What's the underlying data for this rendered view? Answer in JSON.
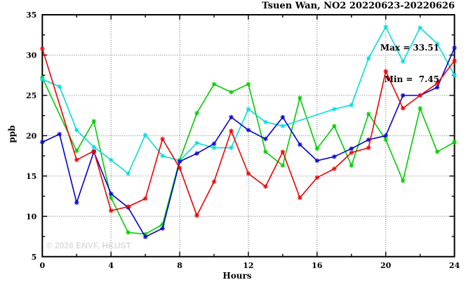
{
  "chart_data": {
    "type": "line",
    "title": "Tsuen Wan, NO2 20220623-20220626",
    "xlabel": "Hours",
    "ylabel": "ppb",
    "xlim": [
      0,
      24
    ],
    "ylim": [
      5,
      35
    ],
    "x_major_ticks": [
      0,
      4,
      8,
      12,
      16,
      20,
      24
    ],
    "x_minor_step": 2,
    "y_major_ticks": [
      5,
      10,
      15,
      20,
      25,
      30,
      35
    ],
    "y_minor_step": 2.5,
    "grid": "dotted lines at major ticks, ticks mirrored on all four borders",
    "legend_position": "none",
    "annotations": {
      "max_label": "Max = 33.51",
      "min_label": "Min =  7.45",
      "max_value": 33.51,
      "min_value": 7.45
    },
    "watermark": "© 2026 ENVF, HKUST",
    "x": [
      0,
      1,
      2,
      3,
      4,
      5,
      6,
      7,
      8,
      9,
      10,
      11,
      12,
      13,
      14,
      15,
      16,
      17,
      18,
      19,
      20,
      21,
      22,
      23,
      24
    ],
    "series": [
      {
        "name": "green",
        "color": "#00cc00",
        "values": [
          27.2,
          null,
          18.1,
          21.8,
          12.3,
          8.0,
          7.8,
          9.0,
          17.0,
          22.8,
          26.4,
          25.4,
          26.4,
          18.0,
          16.3,
          24.7,
          18.4,
          21.2,
          16.3,
          22.7,
          19.5,
          14.4,
          23.4,
          18.0,
          19.2
        ]
      },
      {
        "name": "cyan",
        "color": "#00dddd",
        "values": [
          27.0,
          26.1,
          20.7,
          18.6,
          17.0,
          15.3,
          20.1,
          17.5,
          16.9,
          19.1,
          18.5,
          18.5,
          23.3,
          21.7,
          21.2,
          null,
          null,
          23.3,
          23.8,
          29.6,
          33.51,
          29.2,
          33.4,
          31.4,
          27.5
        ]
      },
      {
        "name": "blue",
        "color": "#0000cc",
        "values": [
          19.2,
          20.2,
          11.7,
          18.0,
          12.8,
          11.1,
          7.45,
          8.5,
          16.8,
          17.8,
          19.0,
          22.3,
          20.7,
          19.6,
          22.3,
          18.9,
          16.9,
          17.4,
          18.4,
          19.5,
          20.0,
          25.0,
          25.0,
          26.0,
          30.9
        ]
      },
      {
        "name": "red",
        "color": "#ee0000",
        "values": [
          30.8,
          null,
          17.0,
          18.1,
          10.7,
          11.2,
          12.2,
          19.6,
          16.0,
          10.1,
          14.3,
          20.6,
          15.3,
          13.7,
          18.0,
          12.3,
          14.8,
          15.9,
          17.9,
          18.5,
          28.0,
          23.4,
          25.0,
          26.5,
          29.3
        ]
      }
    ]
  }
}
